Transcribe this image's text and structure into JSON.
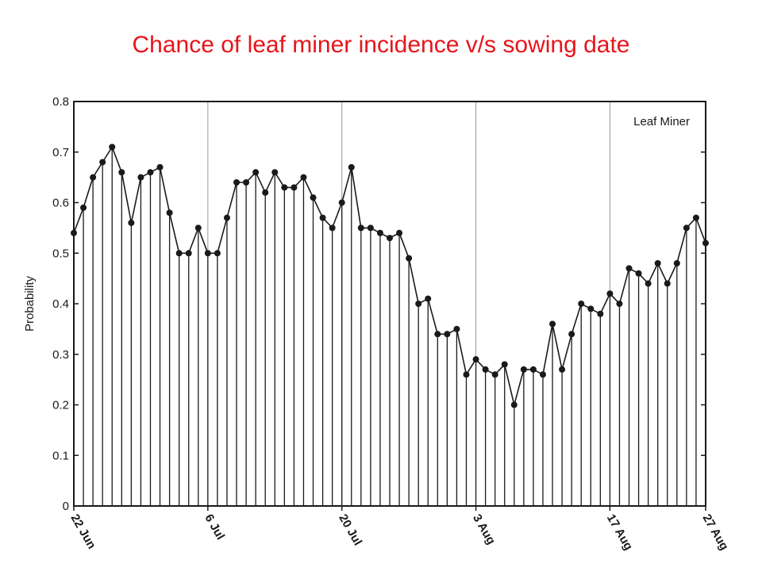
{
  "title": "Chance of leaf miner incidence v/s sowing date",
  "colors": {
    "title": "#e8141b",
    "ink": "#1a1a1a",
    "grid": "#9a9a9a"
  },
  "chart_data": {
    "type": "line",
    "title": "Chance of leaf miner incidence v/s sowing date",
    "annotation": "Leaf Miner",
    "xlabel": "",
    "ylabel": "Probability",
    "ylim": [
      0,
      0.8
    ],
    "yticks": [
      "0",
      "0.1",
      "0.2",
      "0.3",
      "0.4",
      "0.5",
      "0.6",
      "0.7",
      "0.8"
    ],
    "xlim": [
      "22 Jun",
      "27 Aug"
    ],
    "xticks": [
      "22 Jun",
      "6 Jul",
      "20 Jul",
      "3 Aug",
      "17 Aug",
      "27 Aug"
    ],
    "grid": "vertical lines at date ticks",
    "style": "points joined by a line, with a vertical drop-line from each point to 0",
    "series": [
      {
        "x": [
          "22 Jun",
          "23 Jun",
          "24 Jun",
          "25 Jun",
          "26 Jun",
          "27 Jun",
          "28 Jun",
          "29 Jun",
          "30 Jun",
          "1 Jul",
          "2 Jul",
          "3 Jul",
          "4 Jul",
          "5 Jul",
          "6 Jul",
          "7 Jul",
          "8 Jul",
          "9 Jul",
          "10 Jul",
          "11 Jul",
          "12 Jul",
          "13 Jul",
          "14 Jul",
          "15 Jul",
          "16 Jul",
          "17 Jul",
          "18 Jul",
          "19 Jul",
          "20 Jul",
          "21 Jul",
          "22 Jul",
          "23 Jul",
          "24 Jul",
          "25 Jul",
          "26 Jul",
          "27 Jul",
          "28 Jul",
          "29 Jul",
          "30 Jul",
          "31 Jul",
          "1 Aug",
          "2 Aug",
          "3 Aug",
          "4 Aug",
          "5 Aug",
          "6 Aug",
          "7 Aug",
          "8 Aug",
          "9 Aug",
          "10 Aug",
          "11 Aug",
          "12 Aug",
          "13 Aug",
          "14 Aug",
          "15 Aug",
          "16 Aug",
          "17 Aug",
          "18 Aug",
          "19 Aug",
          "20 Aug",
          "21 Aug",
          "22 Aug",
          "23 Aug",
          "24 Aug",
          "25 Aug",
          "26 Aug",
          "27 Aug"
        ],
        "values": [
          0.54,
          0.59,
          0.65,
          0.68,
          0.71,
          0.66,
          0.56,
          0.65,
          0.66,
          0.67,
          0.58,
          0.5,
          0.5,
          0.55,
          0.5,
          0.5,
          0.57,
          0.64,
          0.64,
          0.66,
          0.62,
          0.66,
          0.63,
          0.63,
          0.65,
          0.61,
          0.57,
          0.55,
          0.6,
          0.67,
          0.55,
          0.55,
          0.54,
          0.53,
          0.54,
          0.49,
          0.4,
          0.41,
          0.34,
          0.34,
          0.35,
          0.26,
          0.29,
          0.27,
          0.26,
          0.28,
          0.2,
          0.27,
          0.27,
          0.26,
          0.36,
          0.27,
          0.34,
          0.4,
          0.39,
          0.38,
          0.42,
          0.4,
          0.47,
          0.46,
          0.44,
          0.48,
          0.44,
          0.48,
          0.55,
          0.57,
          0.52
        ]
      }
    ]
  }
}
